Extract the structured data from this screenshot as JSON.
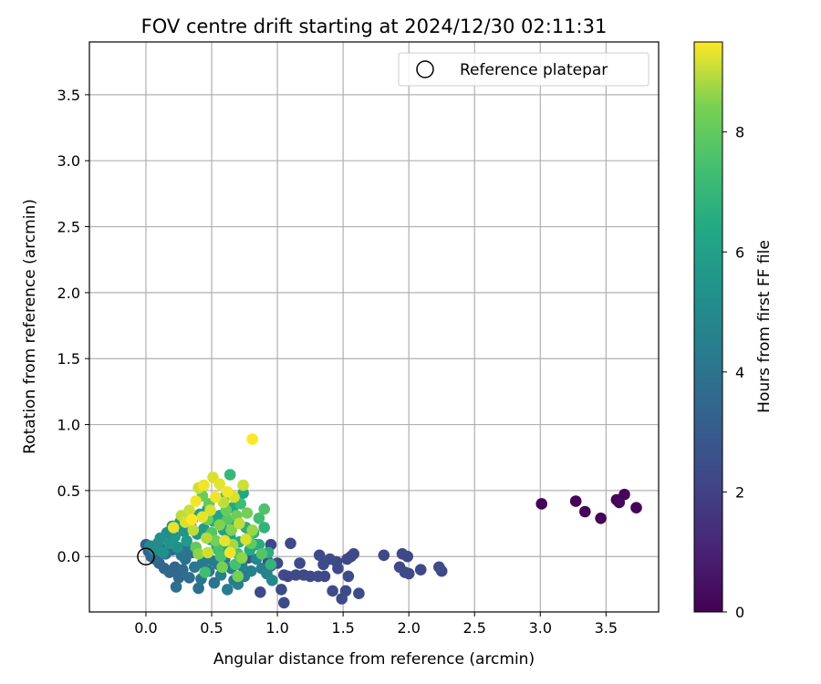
{
  "chart_data": {
    "type": "scatter",
    "title": "FOV centre drift starting at 2024/12/30 02:11:31",
    "xlabel": "Angular distance from reference (arcmin)",
    "ylabel": "Rotation from reference (arcmin)",
    "xlim": [
      -0.43,
      3.9
    ],
    "ylim": [
      -0.42,
      3.9
    ],
    "xticks": [
      0.0,
      0.5,
      1.0,
      1.5,
      2.0,
      2.5,
      3.0,
      3.5
    ],
    "xtick_labels": [
      "0.0",
      "0.5",
      "1.0",
      "1.5",
      "2.0",
      "2.5",
      "3.0",
      "3.5"
    ],
    "yticks": [
      0.0,
      0.5,
      1.0,
      1.5,
      2.0,
      2.5,
      3.0,
      3.5
    ],
    "ytick_labels": [
      "0.0",
      "0.5",
      "1.0",
      "1.5",
      "2.0",
      "2.5",
      "3.0",
      "3.5"
    ],
    "grid": true,
    "legend": {
      "position": "upper right",
      "entries": [
        "Reference platepar"
      ]
    },
    "colorbar": {
      "label": "Hours from first FF file",
      "colormap": "viridis",
      "range": [
        0,
        9.5
      ],
      "ticks": [
        0,
        2,
        4,
        6,
        8
      ],
      "tick_labels": [
        "0",
        "2",
        "4",
        "6",
        "8"
      ]
    },
    "reference_point": {
      "x": 0.0,
      "y": 0.0
    },
    "points": [
      [
        3.01,
        0.4,
        0.1
      ],
      [
        3.27,
        0.42,
        0.1
      ],
      [
        3.34,
        0.34,
        0.1
      ],
      [
        3.46,
        0.29,
        0.1
      ],
      [
        3.58,
        0.43,
        0.1
      ],
      [
        3.6,
        0.41,
        0.2
      ],
      [
        3.64,
        0.47,
        0.1
      ],
      [
        3.73,
        0.37,
        0.1
      ],
      [
        0.87,
        -0.27,
        2.3
      ],
      [
        0.95,
        0.09,
        2.3
      ],
      [
        1.0,
        -0.05,
        2.3
      ],
      [
        1.03,
        -0.25,
        2.4
      ],
      [
        1.05,
        -0.14,
        2.3
      ],
      [
        1.05,
        -0.35,
        2.4
      ],
      [
        1.08,
        -0.15,
        2.3
      ],
      [
        1.1,
        0.1,
        2.3
      ],
      [
        1.14,
        -0.14,
        2.3
      ],
      [
        1.17,
        -0.05,
        2.4
      ],
      [
        1.2,
        -0.14,
        2.3
      ],
      [
        1.25,
        -0.15,
        2.4
      ],
      [
        1.31,
        -0.15,
        2.4
      ],
      [
        1.32,
        0.01,
        2.3
      ],
      [
        1.35,
        -0.06,
        2.4
      ],
      [
        1.36,
        -0.15,
        2.3
      ],
      [
        1.4,
        -0.02,
        2.4
      ],
      [
        1.42,
        -0.26,
        2.4
      ],
      [
        1.45,
        -0.04,
        2.3
      ],
      [
        1.46,
        -0.09,
        2.3
      ],
      [
        1.49,
        -0.32,
        2.4
      ],
      [
        1.52,
        -0.26,
        2.4
      ],
      [
        1.53,
        -0.02,
        2.3
      ],
      [
        1.54,
        -0.15,
        2.4
      ],
      [
        1.56,
        0.0,
        2.3
      ],
      [
        1.58,
        0.02,
        2.3
      ],
      [
        1.62,
        -0.28,
        2.4
      ],
      [
        1.81,
        0.01,
        2.3
      ],
      [
        1.93,
        -0.08,
        2.3
      ],
      [
        1.95,
        0.02,
        2.3
      ],
      [
        1.97,
        -0.12,
        2.4
      ],
      [
        1.99,
        0.0,
        2.3
      ],
      [
        2.0,
        -0.13,
        2.3
      ],
      [
        2.09,
        -0.1,
        2.3
      ],
      [
        2.23,
        -0.08,
        2.4
      ],
      [
        2.25,
        -0.11,
        2.3
      ],
      [
        0.78,
        -0.01,
        2.6
      ],
      [
        0.83,
        0.09,
        2.6
      ],
      [
        0.93,
        -0.04,
        2.7
      ],
      [
        0.95,
        -0.07,
        2.6
      ],
      [
        0.0,
        0.09,
        3.2
      ],
      [
        0.02,
        0.04,
        3.3
      ],
      [
        0.04,
        0.0,
        3.4
      ],
      [
        0.05,
        0.07,
        3.5
      ],
      [
        0.07,
        -0.02,
        3.6
      ],
      [
        0.08,
        0.03,
        3.3
      ],
      [
        0.1,
        -0.05,
        3.5
      ],
      [
        0.12,
        0.06,
        3.7
      ],
      [
        0.14,
        -0.09,
        3.4
      ],
      [
        0.15,
        0.02,
        3.8
      ],
      [
        0.18,
        -0.12,
        3.6
      ],
      [
        0.2,
        0.05,
        3.9
      ],
      [
        0.22,
        -0.08,
        3.5
      ],
      [
        0.23,
        -0.23,
        3.8
      ],
      [
        0.25,
        -0.16,
        3.6
      ],
      [
        0.27,
        0.01,
        4.0
      ],
      [
        0.28,
        -0.1,
        3.7
      ],
      [
        0.3,
        -0.02,
        3.9
      ],
      [
        0.31,
        0.06,
        4.1
      ],
      [
        0.33,
        -0.16,
        3.8
      ],
      [
        0.35,
        0.03,
        4.0
      ],
      [
        0.37,
        -0.08,
        4.2
      ],
      [
        0.4,
        -0.24,
        3.9
      ],
      [
        0.42,
        -0.17,
        4.1
      ],
      [
        0.43,
        -0.05,
        4.3
      ],
      [
        0.46,
        0.01,
        4.0
      ],
      [
        0.48,
        -0.11,
        4.2
      ],
      [
        0.5,
        -0.03,
        4.4
      ],
      [
        0.52,
        -0.2,
        4.1
      ],
      [
        0.55,
        -0.06,
        4.3
      ],
      [
        0.57,
        -0.14,
        4.5
      ],
      [
        0.6,
        -0.02,
        4.2
      ],
      [
        0.62,
        -0.25,
        4.4
      ],
      [
        0.65,
        -0.09,
        4.6
      ],
      [
        0.67,
        -0.18,
        4.3
      ],
      [
        0.7,
        -0.21,
        4.5
      ],
      [
        0.73,
        -0.07,
        4.7
      ],
      [
        0.75,
        -0.15,
        4.4
      ],
      [
        0.8,
        -0.11,
        4.6
      ],
      [
        0.84,
        -0.02,
        4.8
      ],
      [
        0.88,
        -0.09,
        4.5
      ],
      [
        0.92,
        -0.13,
        4.7
      ],
      [
        0.96,
        -0.18,
        4.9
      ],
      [
        0.03,
        0.08,
        5.0
      ],
      [
        0.06,
        0.05,
        5.1
      ],
      [
        0.09,
        0.1,
        5.0
      ],
      [
        0.11,
        0.14,
        5.2
      ],
      [
        0.13,
        0.03,
        5.3
      ],
      [
        0.16,
        0.18,
        5.1
      ],
      [
        0.18,
        0.1,
        5.4
      ],
      [
        0.2,
        0.23,
        5.2
      ],
      [
        0.22,
        0.15,
        5.5
      ],
      [
        0.24,
        0.07,
        5.3
      ],
      [
        0.26,
        0.26,
        5.6
      ],
      [
        0.29,
        0.19,
        5.4
      ],
      [
        0.31,
        0.12,
        5.7
      ],
      [
        0.34,
        0.24,
        5.5
      ],
      [
        0.36,
        0.29,
        5.8
      ],
      [
        0.39,
        0.17,
        5.6
      ],
      [
        0.41,
        0.32,
        5.9
      ],
      [
        0.44,
        0.21,
        5.7
      ],
      [
        0.47,
        0.36,
        6.0
      ],
      [
        0.49,
        0.13,
        5.8
      ],
      [
        0.51,
        0.27,
        6.1
      ],
      [
        0.54,
        0.08,
        5.9
      ],
      [
        0.56,
        0.31,
        6.2
      ],
      [
        0.59,
        0.2,
        6.0
      ],
      [
        0.61,
        0.04,
        6.3
      ],
      [
        0.64,
        0.15,
        6.1
      ],
      [
        0.66,
        0.37,
        6.4
      ],
      [
        0.68,
        0.26,
        6.2
      ],
      [
        0.71,
        0.11,
        6.5
      ],
      [
        0.74,
        0.48,
        6.3
      ],
      [
        0.76,
        0.22,
        6.6
      ],
      [
        0.79,
        0.05,
        6.4
      ],
      [
        0.82,
        0.18,
        6.7
      ],
      [
        0.86,
        0.09,
        6.5
      ],
      [
        0.9,
        0.22,
        6.8
      ],
      [
        0.93,
        0.03,
        6.6
      ],
      [
        0.95,
        -0.06,
        6.9
      ],
      [
        0.64,
        0.62,
        7.0
      ],
      [
        0.6,
        0.45,
        7.1
      ],
      [
        0.72,
        0.4,
        7.2
      ],
      [
        0.45,
        -0.12,
        7.3
      ],
      [
        0.55,
        0.05,
        7.4
      ],
      [
        0.78,
        0.14,
        7.5
      ],
      [
        0.86,
        0.29,
        7.3
      ],
      [
        0.9,
        0.36,
        7.6
      ],
      [
        0.68,
        -0.06,
        7.4
      ],
      [
        0.5,
        0.18,
        7.7
      ],
      [
        0.57,
        0.0,
        7.5
      ],
      [
        0.62,
        0.28,
        7.8
      ],
      [
        0.7,
        0.02,
        7.6
      ],
      [
        0.8,
        0.1,
        7.9
      ],
      [
        0.88,
        0.02,
        7.7
      ],
      [
        0.48,
        0.4,
        8.0
      ],
      [
        0.38,
        0.07,
        8.0
      ],
      [
        0.43,
        0.46,
        8.1
      ],
      [
        0.47,
        0.28,
        8.2
      ],
      [
        0.53,
        0.12,
        8.3
      ],
      [
        0.58,
        -0.08,
        8.4
      ],
      [
        0.61,
        0.35,
        8.1
      ],
      [
        0.65,
        0.2,
        8.5
      ],
      [
        0.69,
        0.31,
        8.2
      ],
      [
        0.73,
        -0.01,
        8.6
      ],
      [
        0.77,
        0.33,
        8.3
      ],
      [
        0.81,
        0.2,
        8.7
      ],
      [
        0.7,
        -0.15,
        8.4
      ],
      [
        0.66,
        0.09,
        8.8
      ],
      [
        0.56,
        0.24,
        8.5
      ],
      [
        0.46,
        0.14,
        8.9
      ],
      [
        0.4,
        0.02,
        8.6
      ],
      [
        0.36,
        0.2,
        9.0
      ],
      [
        0.33,
        0.35,
        9.1
      ],
      [
        0.3,
        0.26,
        9.2
      ],
      [
        0.27,
        0.31,
        9.0
      ],
      [
        0.21,
        0.22,
        9.3
      ],
      [
        0.4,
        0.52,
        9.1
      ],
      [
        0.44,
        0.54,
        9.4
      ],
      [
        0.51,
        0.6,
        9.2
      ],
      [
        0.56,
        0.55,
        9.3
      ],
      [
        0.62,
        0.49,
        9.4
      ],
      [
        0.74,
        0.54,
        9.1
      ],
      [
        0.81,
        0.89,
        9.5
      ],
      [
        0.49,
        0.35,
        9.2
      ],
      [
        0.53,
        0.45,
        9.4
      ],
      [
        0.43,
        0.3,
        9.3
      ],
      [
        0.38,
        0.42,
        9.4
      ],
      [
        0.59,
        0.41,
        9.0
      ],
      [
        0.67,
        0.45,
        9.2
      ],
      [
        0.35,
        0.28,
        9.5
      ],
      [
        0.47,
        0.03,
        9.1
      ],
      [
        0.6,
        0.12,
        9.3
      ],
      [
        0.71,
        0.25,
        9.0
      ],
      [
        0.76,
        0.13,
        9.2
      ],
      [
        0.64,
        0.03,
        9.4
      ]
    ]
  }
}
